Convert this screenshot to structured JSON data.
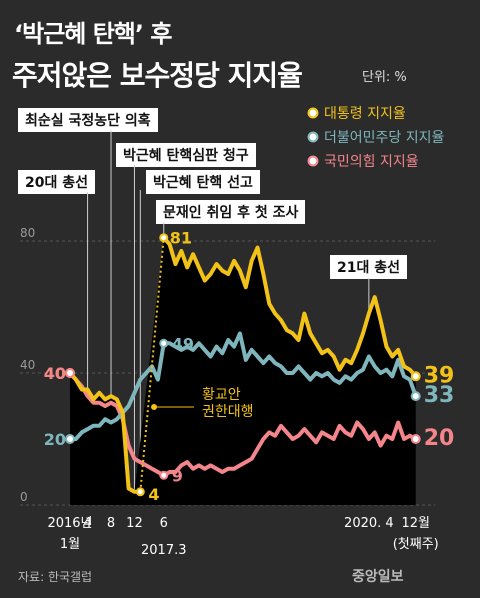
{
  "title": {
    "line1": "‘박근혜 탄핵’ 후",
    "line2": "주저앉은 보수정당 지지율",
    "unit": "단위: %"
  },
  "source": "자료: 한국갤럽",
  "brand": "중앙일보",
  "events": {
    "e1": "최순실 국정농단 의혹",
    "e2": "20대 총선",
    "e3": "박근혜 탄핵심판 청구",
    "e4": "박근혜 탄핵 선고",
    "e5": "문재인 취임 후 첫 조사",
    "e6": "21대 총선",
    "annotation": [
      "황교안",
      "권한대행"
    ]
  },
  "colors": {
    "president": "#f2c218",
    "democratic": "#7fb6bd",
    "ppp": "#f4858b",
    "background": "#2b2b2b"
  },
  "chart_data": {
    "type": "line",
    "yticks": [
      0,
      40,
      80
    ],
    "ylim": [
      0,
      85
    ],
    "x_labels": [
      {
        "x": 0,
        "line1": "2016년",
        "line2": "1월"
      },
      {
        "x": 3,
        "line1": "4"
      },
      {
        "x": 7,
        "line1": "8"
      },
      {
        "x": 11,
        "line1": "12"
      },
      {
        "x": 16,
        "line1": "6"
      },
      {
        "x": 16,
        "line2": "2017.3",
        "baseline": 14
      },
      {
        "x": 51,
        "line1": "2020. 4"
      },
      {
        "x": 59,
        "line1": "12월",
        "line2": "(첫째주)"
      }
    ],
    "legend": [
      {
        "key": "president",
        "label": "대통령 지지율"
      },
      {
        "key": "democratic",
        "label": "더불어민주당 지지율"
      },
      {
        "key": "ppp",
        "label": "국민의힘 지지율"
      }
    ],
    "series": [
      {
        "key": "president",
        "name": "대통령 지지율",
        "points": [
          [
            0,
            40
          ],
          [
            1,
            38
          ],
          [
            2,
            35
          ],
          [
            3,
            35
          ],
          [
            4,
            32
          ],
          [
            5,
            34
          ],
          [
            6,
            32
          ],
          [
            7,
            33
          ],
          [
            8,
            32
          ],
          [
            9,
            28
          ],
          [
            10,
            5
          ],
          [
            11,
            4
          ],
          [
            12,
            4
          ],
          [
            16,
            81
          ],
          [
            17,
            79
          ],
          [
            18,
            73
          ],
          [
            19,
            77
          ],
          [
            20,
            72
          ],
          [
            21,
            76
          ],
          [
            22,
            72
          ],
          [
            23,
            68
          ],
          [
            24,
            70
          ],
          [
            25,
            73
          ],
          [
            26,
            71
          ],
          [
            27,
            70
          ],
          [
            28,
            74
          ],
          [
            29,
            71
          ],
          [
            30,
            66
          ],
          [
            31,
            74
          ],
          [
            32,
            78
          ],
          [
            33,
            70
          ],
          [
            34,
            61
          ],
          [
            35,
            58
          ],
          [
            36,
            56
          ],
          [
            37,
            53
          ],
          [
            38,
            52
          ],
          [
            39,
            50
          ],
          [
            40,
            58
          ],
          [
            41,
            52
          ],
          [
            42,
            49
          ],
          [
            43,
            46
          ],
          [
            44,
            47
          ],
          [
            45,
            45
          ],
          [
            46,
            41
          ],
          [
            47,
            44
          ],
          [
            48,
            43
          ],
          [
            49,
            47
          ],
          [
            50,
            52
          ],
          [
            51,
            58
          ],
          [
            52,
            63
          ],
          [
            53,
            56
          ],
          [
            54,
            48
          ],
          [
            55,
            45
          ],
          [
            56,
            47
          ],
          [
            57,
            42
          ],
          [
            58,
            41
          ],
          [
            59,
            39
          ]
        ],
        "labels": [
          {
            "x": 0,
            "y": 40,
            "text": "40",
            "anchor": "end"
          },
          {
            "x": 12,
            "y": 4,
            "text": "4",
            "anchor": "middle"
          },
          {
            "x": 16,
            "y": 81,
            "text": "81",
            "anchor": "start"
          },
          {
            "x": 59,
            "y": 39,
            "text": "39",
            "anchor": "start"
          }
        ]
      },
      {
        "key": "democratic",
        "name": "더불어민주당 지지율",
        "points": [
          [
            0,
            20
          ],
          [
            1,
            20
          ],
          [
            2,
            22
          ],
          [
            3,
            23
          ],
          [
            4,
            24
          ],
          [
            5,
            24
          ],
          [
            6,
            26
          ],
          [
            7,
            25
          ],
          [
            8,
            26
          ],
          [
            9,
            28
          ],
          [
            10,
            30
          ],
          [
            11,
            34
          ],
          [
            12,
            38
          ],
          [
            13,
            40
          ],
          [
            14,
            42
          ],
          [
            15,
            38
          ],
          [
            16,
            49
          ],
          [
            17,
            49
          ],
          [
            18,
            48
          ],
          [
            19,
            47
          ],
          [
            20,
            48
          ],
          [
            21,
            47
          ],
          [
            22,
            49
          ],
          [
            23,
            47
          ],
          [
            24,
            45
          ],
          [
            25,
            48
          ],
          [
            26,
            46
          ],
          [
            27,
            50
          ],
          [
            28,
            48
          ],
          [
            29,
            52
          ],
          [
            30,
            44
          ],
          [
            31,
            47
          ],
          [
            32,
            45
          ],
          [
            33,
            43
          ],
          [
            34,
            45
          ],
          [
            35,
            43
          ],
          [
            36,
            42
          ],
          [
            37,
            40
          ],
          [
            38,
            40
          ],
          [
            39,
            42
          ],
          [
            40,
            40
          ],
          [
            41,
            38
          ],
          [
            42,
            40
          ],
          [
            43,
            39
          ],
          [
            44,
            40
          ],
          [
            45,
            38
          ],
          [
            46,
            37
          ],
          [
            47,
            39
          ],
          [
            48,
            38
          ],
          [
            49,
            40
          ],
          [
            50,
            41
          ],
          [
            51,
            45
          ],
          [
            52,
            42
          ],
          [
            53,
            40
          ],
          [
            54,
            41
          ],
          [
            55,
            39
          ],
          [
            56,
            44
          ],
          [
            57,
            39
          ],
          [
            58,
            38
          ],
          [
            59,
            33
          ]
        ],
        "labels": [
          {
            "x": 0,
            "y": 20,
            "text": "20",
            "anchor": "end"
          },
          {
            "x": 16,
            "y": 49,
            "text": "49",
            "anchor": "start"
          },
          {
            "x": 59,
            "y": 33,
            "text": "33",
            "anchor": "start"
          }
        ]
      },
      {
        "key": "ppp",
        "name": "국민의힘 지지율",
        "points": [
          [
            0,
            40
          ],
          [
            1,
            38
          ],
          [
            2,
            36
          ],
          [
            3,
            33
          ],
          [
            4,
            31
          ],
          [
            5,
            31
          ],
          [
            6,
            30
          ],
          [
            7,
            31
          ],
          [
            8,
            30
          ],
          [
            9,
            26
          ],
          [
            10,
            18
          ],
          [
            11,
            14
          ],
          [
            12,
            13
          ],
          [
            13,
            12
          ],
          [
            14,
            11
          ],
          [
            15,
            10
          ],
          [
            16,
            9
          ],
          [
            17,
            10
          ],
          [
            18,
            10
          ],
          [
            19,
            12
          ],
          [
            20,
            13
          ],
          [
            21,
            11
          ],
          [
            22,
            12
          ],
          [
            23,
            11
          ],
          [
            24,
            12
          ],
          [
            25,
            11
          ],
          [
            26,
            10
          ],
          [
            27,
            11
          ],
          [
            28,
            11
          ],
          [
            29,
            12
          ],
          [
            30,
            13
          ],
          [
            31,
            14
          ],
          [
            32,
            17
          ],
          [
            33,
            20
          ],
          [
            34,
            22
          ],
          [
            35,
            21
          ],
          [
            36,
            24
          ],
          [
            37,
            22
          ],
          [
            38,
            20
          ],
          [
            39,
            21
          ],
          [
            40,
            23
          ],
          [
            41,
            21
          ],
          [
            42,
            19
          ],
          [
            43,
            22
          ],
          [
            44,
            21
          ],
          [
            45,
            20
          ],
          [
            46,
            24
          ],
          [
            47,
            22
          ],
          [
            48,
            21
          ],
          [
            49,
            25
          ],
          [
            50,
            23
          ],
          [
            51,
            20
          ],
          [
            52,
            22
          ],
          [
            53,
            18
          ],
          [
            54,
            21
          ],
          [
            55,
            20
          ],
          [
            56,
            25
          ],
          [
            57,
            20
          ],
          [
            58,
            21
          ],
          [
            59,
            20
          ]
        ],
        "labels": [
          {
            "x": 0,
            "y": 40,
            "text": "40",
            "anchor": "end"
          },
          {
            "x": 16,
            "y": 9,
            "text": "9",
            "anchor": "start"
          },
          {
            "x": 59,
            "y": 20,
            "text": "20",
            "anchor": "start"
          }
        ]
      }
    ]
  }
}
